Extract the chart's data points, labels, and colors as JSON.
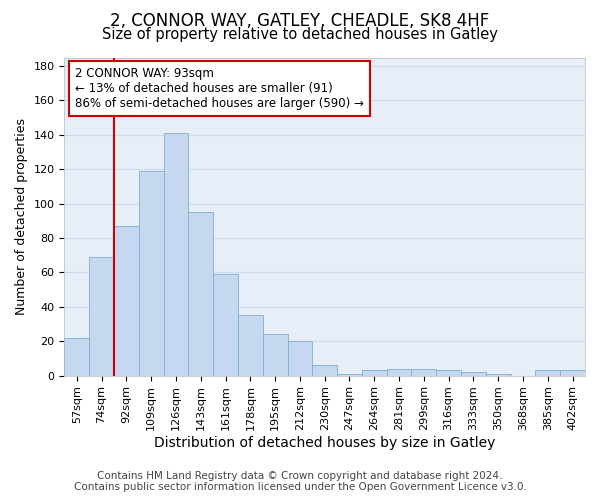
{
  "title1": "2, CONNOR WAY, GATLEY, CHEADLE, SK8 4HF",
  "title2": "Size of property relative to detached houses in Gatley",
  "xlabel": "Distribution of detached houses by size in Gatley",
  "ylabel": "Number of detached properties",
  "footer1": "Contains HM Land Registry data © Crown copyright and database right 2024.",
  "footer2": "Contains public sector information licensed under the Open Government Licence v3.0.",
  "bar_labels": [
    "57sqm",
    "74sqm",
    "92sqm",
    "109sqm",
    "126sqm",
    "143sqm",
    "161sqm",
    "178sqm",
    "195sqm",
    "212sqm",
    "230sqm",
    "247sqm",
    "264sqm",
    "281sqm",
    "299sqm",
    "316sqm",
    "333sqm",
    "350sqm",
    "368sqm",
    "385sqm",
    "402sqm"
  ],
  "bar_heights": [
    22,
    69,
    87,
    119,
    141,
    95,
    59,
    35,
    24,
    20,
    6,
    1,
    3,
    4,
    4,
    3,
    2,
    1,
    0,
    3,
    3
  ],
  "bar_color": "#c5d8f0",
  "bar_edge_color": "#7bafd4",
  "grid_color": "#d0daea",
  "background_color": "#e8eef8",
  "vline_color": "#cc0000",
  "vline_x_index": 2,
  "annotation_line1": "2 CONNOR WAY: 93sqm",
  "annotation_line2": "← 13% of detached houses are smaller (91)",
  "annotation_line3": "86% of semi-detached houses are larger (590) →",
  "annotation_box_color": "#cc0000",
  "ylim": [
    0,
    185
  ],
  "yticks": [
    0,
    20,
    40,
    60,
    80,
    100,
    120,
    140,
    160,
    180
  ],
  "title1_fontsize": 12,
  "title2_fontsize": 10.5,
  "xlabel_fontsize": 10,
  "ylabel_fontsize": 9,
  "tick_fontsize": 8,
  "ann_fontsize": 8.5,
  "footer_fontsize": 7.5
}
